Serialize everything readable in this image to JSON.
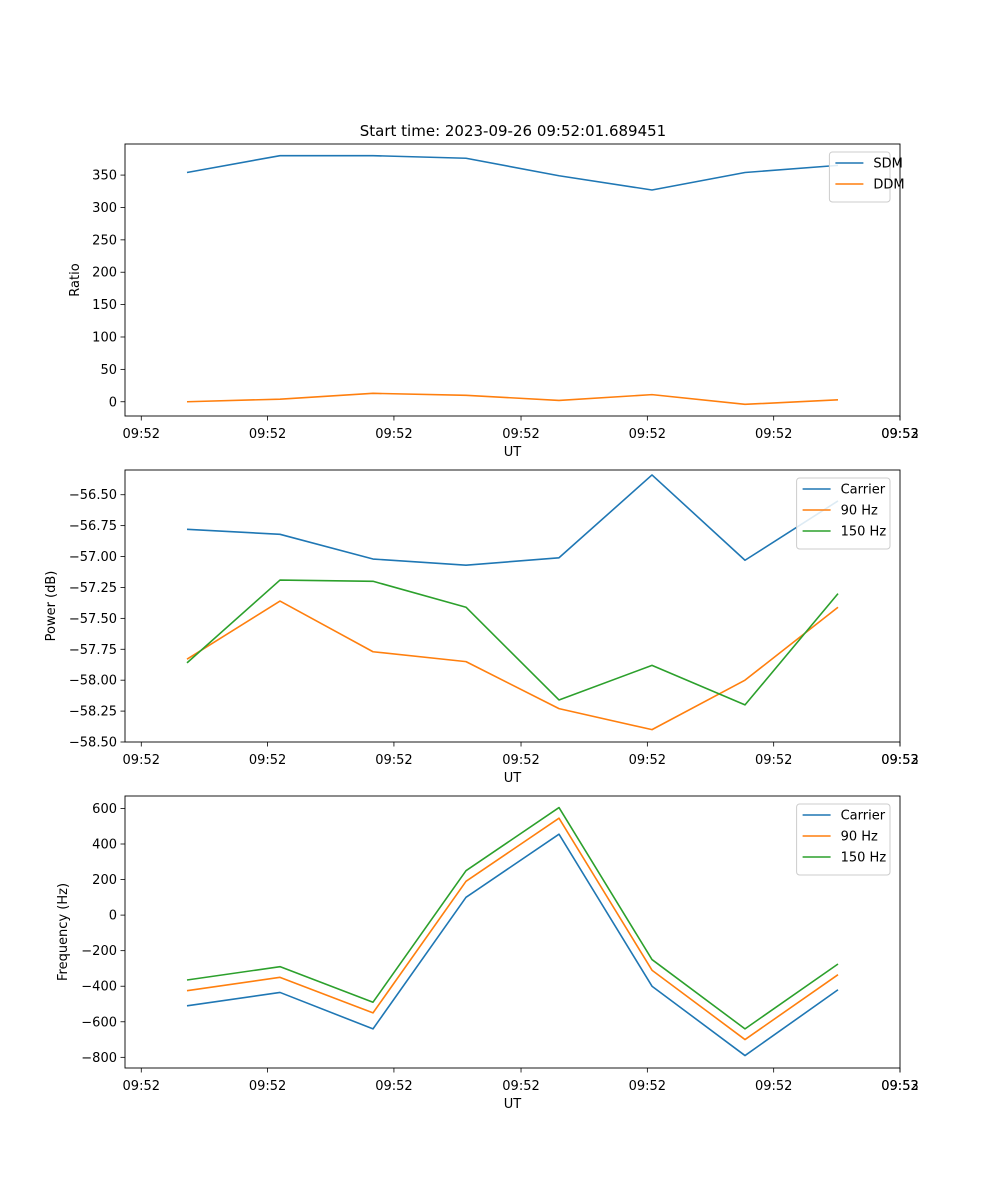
{
  "figure": {
    "suptitle": "Start time: 2023-09-26 09:52:01.689451"
  },
  "colors": {
    "c0": "#1f77b4",
    "c1": "#ff7f0e",
    "c2": "#2ca02c"
  },
  "chart_data": [
    {
      "type": "line",
      "title": "Start time: 2023-09-26 09:52:01.689451",
      "xlabel": "UT",
      "ylabel": "Ratio",
      "x_tick_labels": [
        "09:52",
        "09:52",
        "09:52",
        "09:52",
        "09:52",
        "09:52",
        "09:52",
        "09:53"
      ],
      "xlim": [
        0,
        1
      ],
      "x": [
        0.08,
        0.2,
        0.32,
        0.44,
        0.56,
        0.68,
        0.8,
        0.92
      ],
      "ylim": [
        -22,
        398
      ],
      "yticks": [
        0,
        50,
        100,
        150,
        200,
        250,
        300,
        350
      ],
      "legend": "top-right",
      "series": [
        {
          "name": "SDM",
          "color": "#1f77b4",
          "values": [
            354,
            380,
            380,
            376,
            349,
            327,
            354,
            365
          ]
        },
        {
          "name": "DDM",
          "color": "#ff7f0e",
          "values": [
            0,
            4,
            13,
            10,
            2,
            11,
            -4,
            3
          ]
        }
      ]
    },
    {
      "type": "line",
      "title": "",
      "xlabel": "UT",
      "ylabel": "Power (dB)",
      "x_tick_labels": [
        "09:52",
        "09:52",
        "09:52",
        "09:52",
        "09:52",
        "09:52",
        "09:52",
        "09:53"
      ],
      "xlim": [
        0,
        1
      ],
      "x": [
        0.08,
        0.2,
        0.32,
        0.44,
        0.56,
        0.68,
        0.8,
        0.92
      ],
      "ylim": [
        -58.5,
        -56.3
      ],
      "yticks": [
        -58.5,
        -58.25,
        -58.0,
        -57.75,
        -57.5,
        -57.25,
        -57.0,
        -56.75,
        -56.5
      ],
      "ytick_decimals": 2,
      "legend": "top-right",
      "series": [
        {
          "name": "Carrier",
          "color": "#1f77b4",
          "values": [
            -56.78,
            -56.82,
            -57.02,
            -57.07,
            -57.01,
            -56.34,
            -57.03,
            -56.55
          ]
        },
        {
          "name": "90 Hz",
          "color": "#ff7f0e",
          "values": [
            -57.83,
            -57.36,
            -57.77,
            -57.85,
            -58.23,
            -58.4,
            -58.0,
            -57.41
          ]
        },
        {
          "name": "150 Hz",
          "color": "#2ca02c",
          "values": [
            -57.86,
            -57.19,
            -57.2,
            -57.41,
            -58.16,
            -57.88,
            -58.2,
            -57.3
          ]
        }
      ]
    },
    {
      "type": "line",
      "title": "",
      "xlabel": "UT",
      "ylabel": "Frequency (Hz)",
      "x_tick_labels": [
        "09:52",
        "09:52",
        "09:52",
        "09:52",
        "09:52",
        "09:52",
        "09:52",
        "09:53"
      ],
      "xlim": [
        0,
        1
      ],
      "x": [
        0.08,
        0.2,
        0.32,
        0.44,
        0.56,
        0.68,
        0.8,
        0.92
      ],
      "ylim": [
        -860,
        670
      ],
      "yticks": [
        -800,
        -600,
        -400,
        -200,
        0,
        200,
        400,
        600
      ],
      "legend": "top-right",
      "series": [
        {
          "name": "Carrier",
          "color": "#1f77b4",
          "values": [
            -510,
            -435,
            -640,
            100,
            455,
            -400,
            -790,
            -420
          ]
        },
        {
          "name": "90 Hz",
          "color": "#ff7f0e",
          "values": [
            -425,
            -350,
            -550,
            190,
            545,
            -310,
            -700,
            -335
          ]
        },
        {
          "name": "150 Hz",
          "color": "#2ca02c",
          "values": [
            -365,
            -290,
            -490,
            250,
            605,
            -250,
            -640,
            -275
          ]
        }
      ]
    }
  ]
}
